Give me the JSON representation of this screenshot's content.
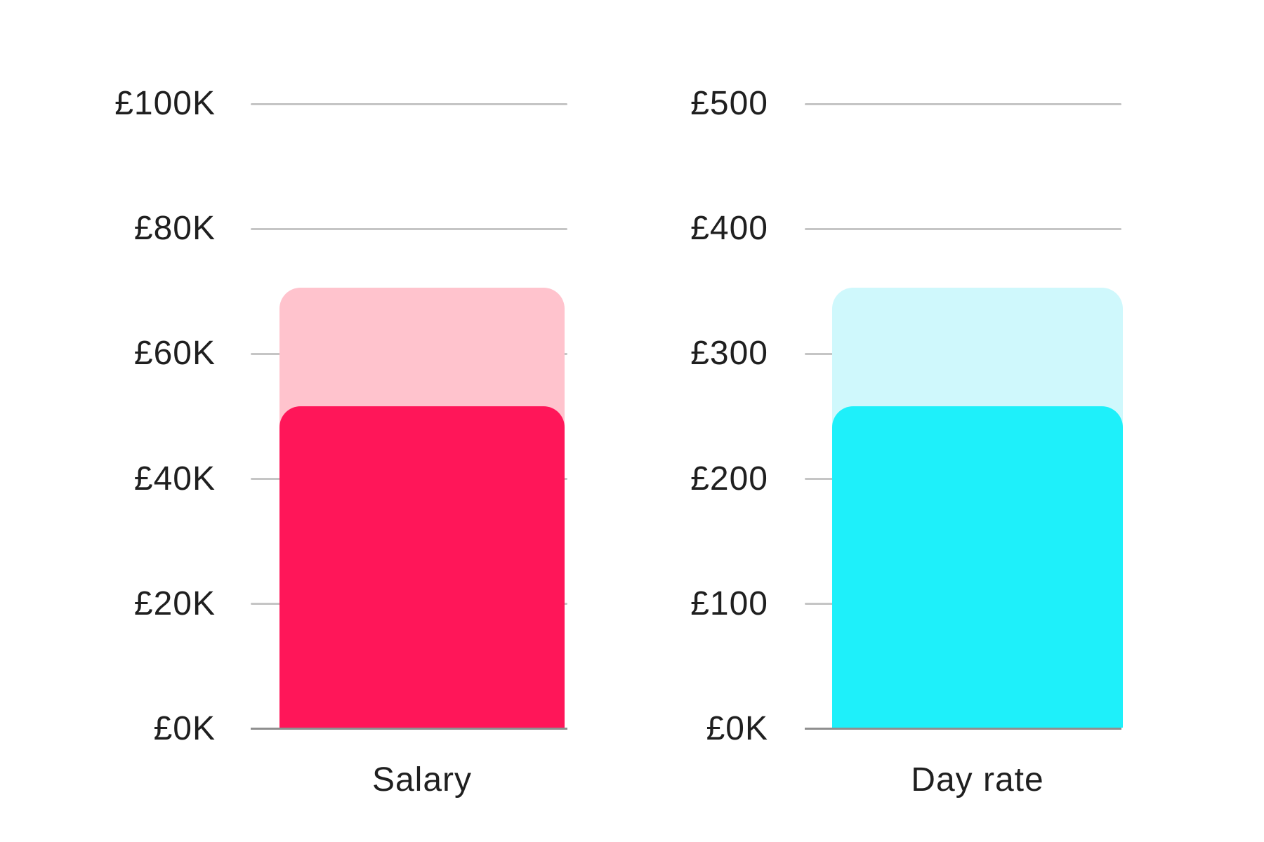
{
  "page": {
    "background": "#ffffff",
    "text_color": "#1f1f1f",
    "gridline_color": "#c5c5c5",
    "axis_line_color": "#8f8f8f"
  },
  "chart_data": [
    {
      "type": "bar",
      "id": "salary",
      "xlabel": "Salary",
      "title": "",
      "ylabel": "",
      "currency": "GBP",
      "ylim": [
        0,
        100
      ],
      "unit": "thousands of pounds",
      "grid": true,
      "legend": "none",
      "ticks": [
        {
          "label": "£0K",
          "value": 0
        },
        {
          "label": "£20K",
          "value": 20
        },
        {
          "label": "£40K",
          "value": 40
        },
        {
          "label": "£60K",
          "value": 60
        },
        {
          "label": "£80K",
          "value": 80
        },
        {
          "label": "£100K",
          "value": 100
        }
      ],
      "series": [
        {
          "name": "comparison",
          "role": "background-bar",
          "value": 70.6,
          "color": "#FFC3CD"
        },
        {
          "name": "highlight",
          "role": "foreground-bar",
          "value": 51.6,
          "color": "#FF1659"
        }
      ]
    },
    {
      "type": "bar",
      "id": "day-rate",
      "xlabel": "Day rate",
      "title": "",
      "ylabel": "",
      "currency": "GBP",
      "ylim": [
        0,
        500
      ],
      "unit": "pounds per day",
      "grid": true,
      "legend": "none",
      "ticks": [
        {
          "label": "£0K",
          "value": 0
        },
        {
          "label": "£100",
          "value": 100
        },
        {
          "label": "£200",
          "value": 200
        },
        {
          "label": "£300",
          "value": 300
        },
        {
          "label": "£400",
          "value": 400
        },
        {
          "label": "£500",
          "value": 500
        }
      ],
      "series": [
        {
          "name": "comparison",
          "role": "background-bar",
          "value": 353,
          "color": "#CFF8FC"
        },
        {
          "name": "highlight",
          "role": "foreground-bar",
          "value": 258,
          "color": "#1EF0FA"
        }
      ]
    }
  ]
}
